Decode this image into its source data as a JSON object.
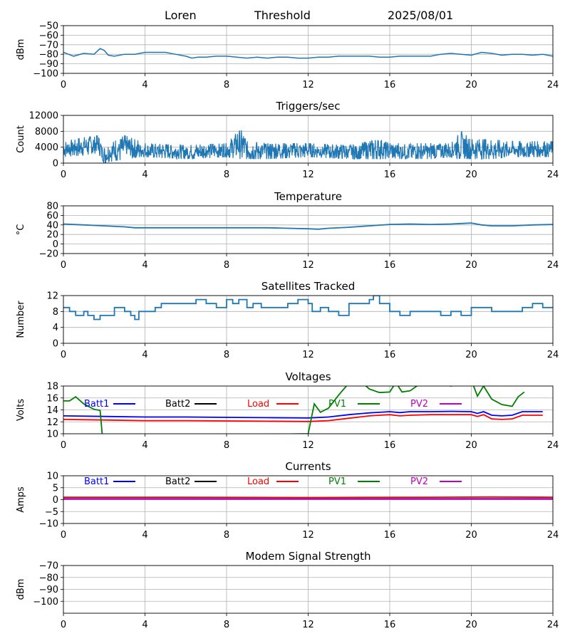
{
  "header": {
    "station": "Loren",
    "mode": "Threshold",
    "date": "2025/08/01"
  },
  "colors": {
    "blue": "#1f77b4",
    "grid": "#b0b0b0",
    "batt1": "#0000ff",
    "batt2": "#000000",
    "load": "#ff0000",
    "pv1": "#008000",
    "pv2": "#bf00bf"
  },
  "chart_data": [
    {
      "id": "signal",
      "type": "line",
      "title": "",
      "xlabel": "",
      "ylabel": "dBm",
      "xlim": [
        0,
        24
      ],
      "ylim": [
        -100,
        -50
      ],
      "xticks": [
        "0",
        "4",
        "8",
        "12",
        "16",
        "20",
        "24"
      ],
      "yticks": [
        "−100",
        "−90",
        "−80",
        "−70",
        "−60",
        "−50"
      ],
      "grid": true,
      "series": [
        {
          "color": "#1f77b4",
          "x": [
            0,
            0.5,
            1,
            1.5,
            1.8,
            2,
            2.2,
            2.5,
            3,
            3.5,
            4,
            4.5,
            5,
            5.5,
            6,
            6.3,
            6.6,
            7,
            7.5,
            8,
            8.5,
            9,
            9.5,
            10,
            10.5,
            11,
            11.5,
            12,
            12.5,
            13,
            13.5,
            14,
            14.5,
            15,
            15.5,
            16,
            16.5,
            17,
            17.5,
            18,
            18.5,
            19,
            19.5,
            20,
            20.5,
            21,
            21.5,
            22,
            22.5,
            23,
            23.5,
            24
          ],
          "y": [
            -78,
            -82,
            -79,
            -80,
            -74,
            -76,
            -81,
            -82,
            -80,
            -80,
            -78,
            -78,
            -78,
            -80,
            -82,
            -84,
            -83,
            -83,
            -82,
            -82,
            -83,
            -84,
            -83,
            -84,
            -83,
            -83,
            -84,
            -84,
            -83,
            -83,
            -82,
            -82,
            -82,
            -82,
            -83,
            -83,
            -82,
            -82,
            -82,
            -82,
            -80,
            -79,
            -80,
            -81,
            -78,
            -79,
            -81,
            -80,
            -80,
            -81,
            -80,
            -82
          ]
        }
      ]
    },
    {
      "id": "triggers",
      "type": "line",
      "title": "Triggers/sec",
      "xlabel": "",
      "ylabel": "Count",
      "xlim": [
        0,
        24
      ],
      "ylim": [
        0,
        12000
      ],
      "xticks": [
        "0",
        "4",
        "8",
        "12",
        "16",
        "20",
        "24"
      ],
      "yticks": [
        "0",
        "4000",
        "8000",
        "12000"
      ],
      "grid": true,
      "series": [
        {
          "color": "#1f77b4",
          "envelope_x": [
            0,
            1,
            1.7,
            2,
            3,
            4,
            6,
            8,
            8.7,
            9,
            10,
            12,
            14,
            15.5,
            16,
            18,
            19,
            19.5,
            20,
            21,
            22,
            23,
            24
          ],
          "upper": [
            5500,
            6500,
            7000,
            4000,
            7000,
            5000,
            4500,
            5000,
            8500,
            5500,
            5000,
            5000,
            4500,
            6000,
            5000,
            5000,
            5000,
            8000,
            6000,
            6000,
            5500,
            5500,
            5500
          ],
          "lower": [
            1500,
            2000,
            2500,
            0,
            1000,
            1500,
            1000,
            1500,
            1000,
            1000,
            1000,
            1500,
            1000,
            1000,
            1000,
            1000,
            1500,
            1000,
            1000,
            1000,
            1500,
            1500,
            1500
          ]
        }
      ]
    },
    {
      "id": "temperature",
      "type": "line",
      "title": "Temperature",
      "xlabel": "",
      "ylabel": "°C",
      "xlim": [
        0,
        24
      ],
      "ylim": [
        -20,
        80
      ],
      "xticks": [
        "0",
        "4",
        "8",
        "12",
        "16",
        "20",
        "24"
      ],
      "yticks": [
        "−20",
        "0",
        "20",
        "40",
        "60",
        "80"
      ],
      "grid": true,
      "series": [
        {
          "color": "#1f77b4",
          "x": [
            0,
            1,
            2,
            3,
            3.5,
            4,
            6,
            8,
            10,
            11,
            12,
            12.5,
            13,
            14,
            15,
            16,
            17,
            18,
            19,
            19.5,
            20,
            20.5,
            21,
            22,
            23,
            24
          ],
          "y": [
            42,
            40,
            38,
            36,
            34,
            34,
            34,
            34,
            34,
            33,
            32,
            31,
            33,
            35,
            38,
            41,
            42,
            41,
            42,
            43,
            44,
            40,
            38,
            38,
            40,
            41
          ]
        }
      ]
    },
    {
      "id": "satellites",
      "type": "line",
      "title": "Satellites Tracked",
      "xlabel": "",
      "ylabel": "Number",
      "xlim": [
        0,
        24
      ],
      "ylim": [
        0,
        12
      ],
      "xticks": [
        "0",
        "4",
        "8",
        "12",
        "16",
        "20",
        "24"
      ],
      "yticks": [
        "0",
        "4",
        "8",
        "12"
      ],
      "grid": true,
      "series": [
        {
          "color": "#1f77b4",
          "x": [
            0,
            0.3,
            0.6,
            1,
            1.2,
            1.5,
            1.8,
            2,
            2.5,
            3,
            3.3,
            3.5,
            3.7,
            4,
            4.5,
            4.8,
            5.2,
            6,
            6.5,
            7,
            7.5,
            8,
            8.3,
            8.6,
            9,
            9.3,
            9.7,
            10,
            11,
            11.5,
            12,
            12.2,
            12.6,
            13,
            13.5,
            14,
            14.5,
            15,
            15.2,
            15.5,
            16,
            16.5,
            17,
            18,
            18.5,
            19,
            19.5,
            20,
            20.5,
            21,
            21.5,
            22,
            22.5,
            23,
            23.5,
            24
          ],
          "y": [
            9,
            8,
            7,
            8,
            7,
            6,
            7,
            7,
            9,
            8,
            7,
            6,
            8,
            8,
            9,
            10,
            10,
            10,
            11,
            10,
            9,
            11,
            10,
            11,
            9,
            10,
            9,
            9,
            10,
            11,
            10,
            8,
            9,
            8,
            7,
            10,
            10,
            11,
            12,
            10,
            8,
            7,
            8,
            8,
            7,
            8,
            7,
            9,
            9,
            8,
            8,
            8,
            9,
            10,
            9,
            9
          ],
          "step": true
        }
      ]
    },
    {
      "id": "voltages",
      "type": "line",
      "title": "Voltages",
      "xlabel": "",
      "ylabel": "Volts",
      "xlim": [
        0,
        24
      ],
      "ylim": [
        10,
        18
      ],
      "xticks": [
        "0",
        "4",
        "8",
        "12",
        "16",
        "20",
        "24"
      ],
      "yticks": [
        "10",
        "12",
        "14",
        "16",
        "18"
      ],
      "grid": true,
      "legend": "top",
      "series": [
        {
          "name": "Batt1",
          "color": "#0000ff",
          "x": [
            0,
            2,
            4,
            6,
            8,
            10,
            12,
            13,
            14,
            15,
            15.5,
            16,
            16.5,
            17,
            18,
            19,
            20,
            20.3,
            20.6,
            21,
            21.5,
            22,
            22.5,
            23,
            23.5
          ],
          "y": [
            13,
            12.9,
            12.8,
            12.8,
            12.75,
            12.7,
            12.65,
            12.8,
            13.2,
            13.5,
            13.6,
            13.7,
            13.55,
            13.7,
            13.7,
            13.75,
            13.7,
            13.4,
            13.7,
            13.1,
            13,
            13.1,
            13.7,
            13.7,
            13.7
          ]
        },
        {
          "name": "Batt2",
          "color": "#000000",
          "x": [],
          "y": []
        },
        {
          "name": "Load",
          "color": "#ff0000",
          "x": [
            0,
            2,
            4,
            6,
            8,
            10,
            12,
            13,
            14,
            15,
            15.5,
            16,
            16.5,
            17,
            18,
            19,
            20,
            20.3,
            20.6,
            21,
            21.5,
            22,
            22.5,
            23,
            23.5
          ],
          "y": [
            12.4,
            12.3,
            12.2,
            12.2,
            12.15,
            12.1,
            12.05,
            12.2,
            12.6,
            13,
            13.1,
            13.2,
            13,
            13.1,
            13.2,
            13.2,
            13.2,
            12.9,
            13.2,
            12.5,
            12.4,
            12.5,
            13.1,
            13.1,
            13.1
          ]
        },
        {
          "name": "PV1",
          "color": "#008000",
          "x": [
            0,
            0.3,
            0.6,
            1,
            1.5,
            1.8,
            1.9,
            2.1,
            12,
            12.3,
            12.6,
            13,
            13.5,
            14,
            14.5,
            15,
            15.5,
            16,
            16.3,
            16.6,
            17,
            17.5,
            18,
            18.5,
            19,
            19.5,
            20,
            20.3,
            20.6,
            21,
            21.5,
            22,
            22.3,
            22.6
          ],
          "y": [
            15.5,
            15.5,
            16.2,
            15,
            14.1,
            13.9,
            10,
            9.5,
            10,
            15,
            13.6,
            14.3,
            16.5,
            18.5,
            19,
            17.5,
            16.9,
            17,
            18.6,
            17,
            17.2,
            18.4,
            19,
            18.5,
            18,
            18.5,
            19,
            16.3,
            18,
            15.8,
            14.9,
            14.6,
            16.2,
            17
          ]
        },
        {
          "name": "PV2",
          "color": "#bf00bf",
          "x": [],
          "y": []
        }
      ]
    },
    {
      "id": "currents",
      "type": "line",
      "title": "Currents",
      "xlabel": "",
      "ylabel": "Amps",
      "xlim": [
        0,
        24
      ],
      "ylim": [
        -10,
        10
      ],
      "xticks": [
        "0",
        "4",
        "8",
        "12",
        "16",
        "20",
        "24"
      ],
      "yticks": [
        "−10",
        "−5",
        "0",
        "5",
        "10"
      ],
      "grid": true,
      "legend": "top",
      "series": [
        {
          "name": "Batt1",
          "color": "#0000ff",
          "x": [
            0,
            24
          ],
          "y": [
            0.4,
            0.4
          ]
        },
        {
          "name": "Batt2",
          "color": "#000000",
          "x": [],
          "y": []
        },
        {
          "name": "Load",
          "color": "#ff0000",
          "x": [
            0,
            6,
            12,
            18,
            21,
            24
          ],
          "y": [
            1,
            1,
            0.9,
            1,
            1.1,
            1
          ]
        },
        {
          "name": "PV1",
          "color": "#008000",
          "x": [
            0,
            24
          ],
          "y": [
            0.3,
            0.3
          ]
        },
        {
          "name": "PV2",
          "color": "#bf00bf",
          "x": [
            0,
            24
          ],
          "y": [
            0.2,
            0.2
          ]
        }
      ]
    },
    {
      "id": "modem",
      "type": "line",
      "title": "Modem Signal Strength",
      "xlabel": "",
      "ylabel": "dBm",
      "xlim": [
        0,
        24
      ],
      "ylim": [
        -110,
        -70
      ],
      "xticks": [
        "0",
        "4",
        "8",
        "12",
        "16",
        "20",
        "24"
      ],
      "yticks": [
        "−100",
        "−90",
        "−80",
        "−70"
      ],
      "grid": true,
      "series": []
    }
  ]
}
